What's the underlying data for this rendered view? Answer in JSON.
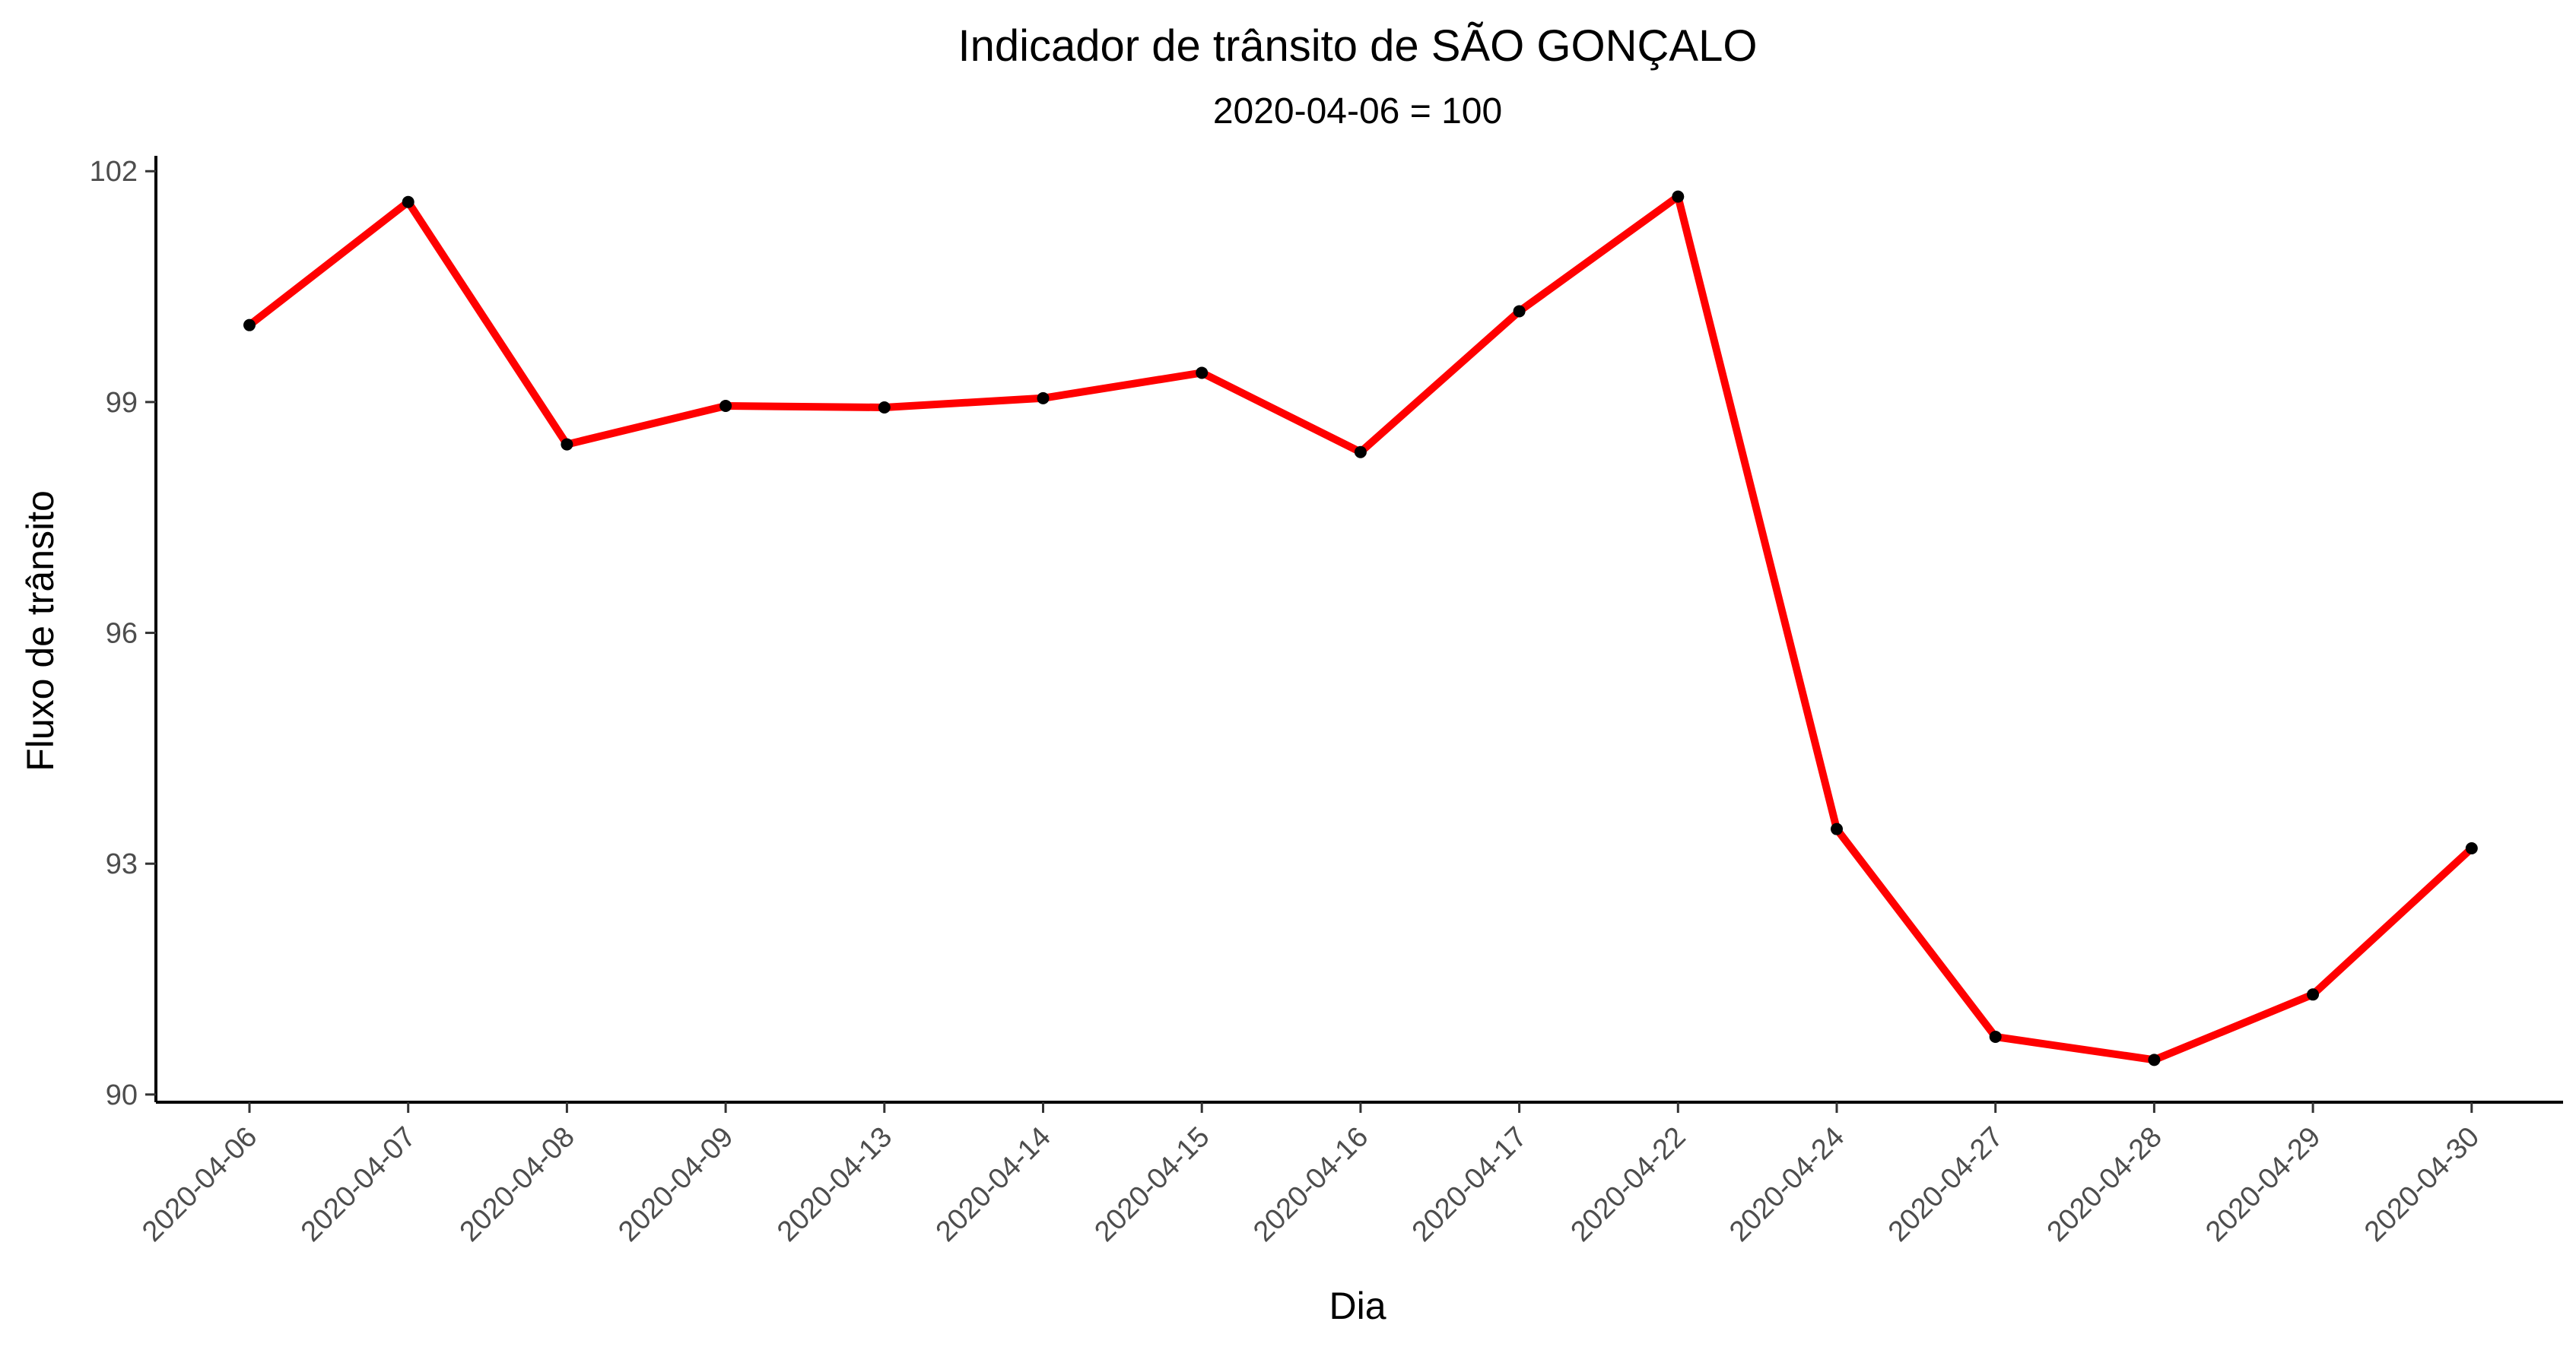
{
  "chart_data": {
    "type": "line",
    "title": "Indicador de trânsito de SÃO GONÇALO",
    "subtitle": "2020-04-06 = 100",
    "xlabel": "Dia",
    "ylabel": "Fluxo de trânsito",
    "categories": [
      "2020-04-06",
      "2020-04-07",
      "2020-04-08",
      "2020-04-09",
      "2020-04-13",
      "2020-04-14",
      "2020-04-15",
      "2020-04-16",
      "2020-04-17",
      "2020-04-22",
      "2020-04-24",
      "2020-04-27",
      "2020-04-28",
      "2020-04-29",
      "2020-04-30"
    ],
    "series": [
      {
        "values": [
          100.0,
          101.6,
          98.45,
          98.95,
          98.93,
          99.05,
          99.38,
          98.35,
          100.18,
          101.67,
          93.45,
          90.75,
          90.45,
          91.3,
          93.2
        ],
        "color": "#ff0000",
        "marker_color": "#000000"
      }
    ],
    "ylim": [
      89.9,
      102.2
    ],
    "yticks": [
      90,
      93,
      96,
      99,
      102
    ],
    "grid": false,
    "legend": "none"
  }
}
